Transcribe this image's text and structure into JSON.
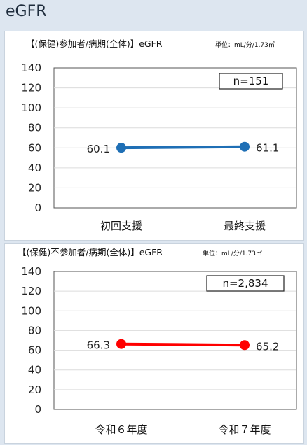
{
  "page_title": "eGFR",
  "chart_data": [
    {
      "type": "line",
      "title": "【(保健)参加者/病期(全体)】eGFR",
      "unit": "単位：mL/分/1.73㎡",
      "n_label": "n=151",
      "categories": [
        "初回支援",
        "最終支援"
      ],
      "series": [
        {
          "values": [
            60.1,
            61.1
          ],
          "color": "#1f6fb5"
        }
      ],
      "data_labels": [
        "60.1",
        "61.1"
      ],
      "ylim": [
        0,
        140
      ],
      "yticks": [
        "0",
        "20",
        "40",
        "60",
        "80",
        "100",
        "120",
        "140"
      ],
      "grid": true
    },
    {
      "type": "line",
      "title": "【(保健)不参加者/病期(全体)】eGFR",
      "unit": "単位：mL/分/1.73㎡",
      "n_label": "n=2,834",
      "categories": [
        "令和６年度",
        "令和７年度"
      ],
      "series": [
        {
          "values": [
            66.3,
            65.2
          ],
          "color": "#ff0000"
        }
      ],
      "data_labels": [
        "66.3",
        "65.2"
      ],
      "ylim": [
        0,
        140
      ],
      "yticks": [
        "0",
        "20",
        "40",
        "60",
        "80",
        "100",
        "120",
        "140"
      ],
      "grid": true
    }
  ]
}
